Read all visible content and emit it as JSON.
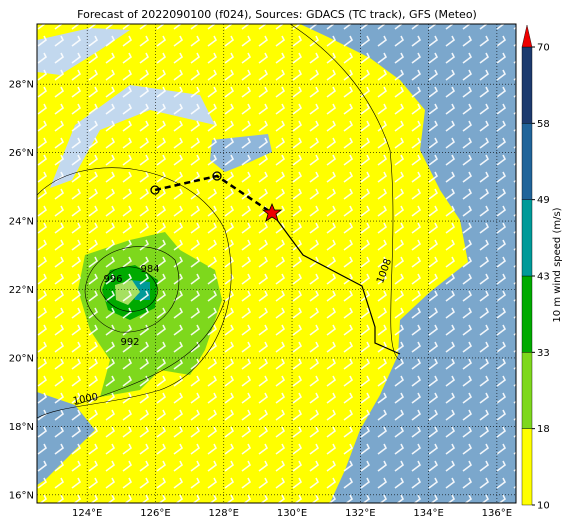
{
  "map": {
    "title": "Forecast of 2022090100 (f024), Sources: GDACS (TC track), GFS (Meteo)",
    "lon_range": [
      122.53,
      136.56
    ],
    "lat_range": [
      15.76,
      29.76
    ],
    "lon_ticks": [
      {
        "value": 124,
        "label": "124°E"
      },
      {
        "value": 126,
        "label": "126°E"
      },
      {
        "value": 128,
        "label": "128°E"
      },
      {
        "value": 130,
        "label": "130°E"
      },
      {
        "value": 132,
        "label": "132°E"
      },
      {
        "value": 134,
        "label": "134°E"
      },
      {
        "value": 136,
        "label": "136°E"
      }
    ],
    "lat_ticks": [
      {
        "value": 16,
        "label": "16°N"
      },
      {
        "value": 18,
        "label": "18°N"
      },
      {
        "value": 20,
        "label": "20°N"
      },
      {
        "value": 22,
        "label": "22°N"
      },
      {
        "value": 24,
        "label": "24°N"
      },
      {
        "value": 26,
        "label": "26°N"
      },
      {
        "value": 28,
        "label": "28°N"
      }
    ],
    "contour_labels": [
      "996",
      "984",
      "992",
      "1000",
      "1008"
    ],
    "colorbar": {
      "title": "10 m wind speed (m/s)",
      "levels": [
        10,
        18,
        33,
        43,
        49,
        58,
        70
      ],
      "colors": [
        "#ffff00",
        "#7ed81c",
        "#00aa00",
        "#009a99",
        "#20649a",
        "#1c3a6e"
      ],
      "extend_color": "#ee0000"
    }
  }
}
